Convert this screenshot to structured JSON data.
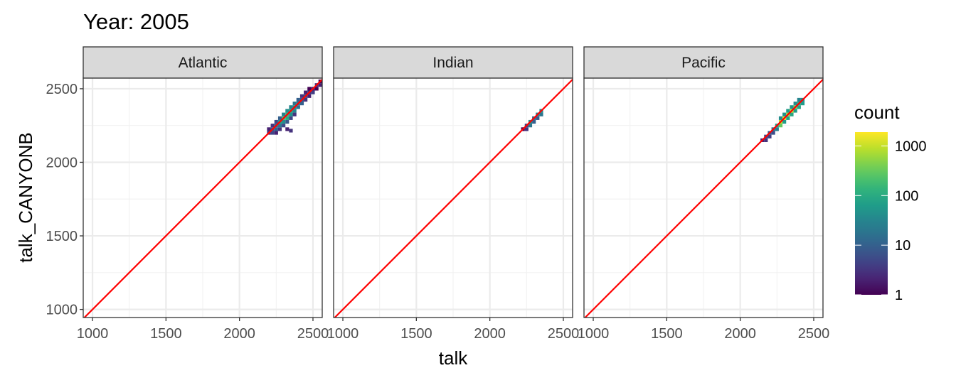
{
  "chart_data": {
    "type": "heatmap",
    "title": "Year: 2005",
    "xlabel": "talk",
    "ylabel": "talk_CANYONB",
    "xlim": [
      937,
      2563
    ],
    "ylim": [
      945,
      2572
    ],
    "x_ticks": [
      1000,
      1500,
      2000,
      2500
    ],
    "y_ticks": [
      1000,
      1500,
      2000,
      2500
    ],
    "grid": true,
    "reference_line": {
      "type": "identity",
      "color": "#FF0000"
    },
    "bin_width": 25,
    "legend": {
      "title": "count",
      "position": "right",
      "scale": "log10",
      "colormap": "viridis",
      "ticks": [
        1,
        10,
        100,
        1000
      ],
      "tick_labels": [
        "1",
        "10",
        "100",
        "1000"
      ],
      "range": [
        1,
        1900
      ]
    },
    "panels": [
      {
        "label": "Atlantic",
        "bins": [
          [
            2200,
            2200,
            3
          ],
          [
            2200,
            2225,
            2
          ],
          [
            2225,
            2200,
            5
          ],
          [
            2225,
            2225,
            8
          ],
          [
            2225,
            2250,
            3
          ],
          [
            2250,
            2200,
            2
          ],
          [
            2250,
            2225,
            10
          ],
          [
            2250,
            2250,
            15
          ],
          [
            2250,
            2275,
            5
          ],
          [
            2275,
            2225,
            3
          ],
          [
            2275,
            2250,
            20
          ],
          [
            2275,
            2275,
            60
          ],
          [
            2275,
            2300,
            10
          ],
          [
            2300,
            2250,
            5
          ],
          [
            2300,
            2275,
            40
          ],
          [
            2300,
            2300,
            200
          ],
          [
            2300,
            2325,
            30
          ],
          [
            2325,
            2225,
            2
          ],
          [
            2325,
            2275,
            8
          ],
          [
            2325,
            2300,
            100
          ],
          [
            2325,
            2325,
            150
          ],
          [
            2325,
            2350,
            40
          ],
          [
            2350,
            2215,
            3
          ],
          [
            2350,
            2300,
            5
          ],
          [
            2350,
            2325,
            50
          ],
          [
            2350,
            2350,
            80
          ],
          [
            2350,
            2375,
            30
          ],
          [
            2375,
            2325,
            3
          ],
          [
            2375,
            2350,
            30
          ],
          [
            2375,
            2375,
            40
          ],
          [
            2375,
            2400,
            20
          ],
          [
            2400,
            2375,
            15
          ],
          [
            2400,
            2400,
            20
          ],
          [
            2400,
            2425,
            10
          ],
          [
            2425,
            2400,
            10
          ],
          [
            2425,
            2425,
            8
          ],
          [
            2425,
            2450,
            3
          ],
          [
            2450,
            2425,
            3
          ],
          [
            2450,
            2450,
            5
          ],
          [
            2450,
            2475,
            2
          ],
          [
            2475,
            2450,
            2
          ],
          [
            2475,
            2475,
            3
          ],
          [
            2475,
            2500,
            1
          ],
          [
            2500,
            2475,
            4
          ],
          [
            2500,
            2500,
            2
          ],
          [
            2525,
            2500,
            1
          ],
          [
            2525,
            2525,
            3
          ],
          [
            2550,
            2525,
            2
          ],
          [
            2550,
            2550,
            1
          ]
        ]
      },
      {
        "label": "Indian",
        "bins": [
          [
            2225,
            2225,
            1
          ],
          [
            2250,
            2225,
            3
          ],
          [
            2250,
            2250,
            5
          ],
          [
            2275,
            2250,
            20
          ],
          [
            2275,
            2275,
            40
          ],
          [
            2300,
            2275,
            10
          ],
          [
            2300,
            2300,
            15
          ],
          [
            2325,
            2300,
            8
          ],
          [
            2325,
            2325,
            30
          ],
          [
            2350,
            2325,
            20
          ],
          [
            2350,
            2350,
            40
          ]
        ]
      },
      {
        "label": "Pacific",
        "bins": [
          [
            2150,
            2150,
            2
          ],
          [
            2175,
            2150,
            3
          ],
          [
            2175,
            2175,
            5
          ],
          [
            2200,
            2175,
            4
          ],
          [
            2200,
            2200,
            8
          ],
          [
            2225,
            2200,
            6
          ],
          [
            2225,
            2225,
            20
          ],
          [
            2250,
            2225,
            25
          ],
          [
            2250,
            2250,
            80
          ],
          [
            2275,
            2250,
            300
          ],
          [
            2275,
            2275,
            900
          ],
          [
            2275,
            2300,
            40
          ],
          [
            2300,
            2275,
            60
          ],
          [
            2300,
            2300,
            1200
          ],
          [
            2300,
            2325,
            50
          ],
          [
            2325,
            2300,
            80
          ],
          [
            2325,
            2325,
            700
          ],
          [
            2325,
            2350,
            60
          ],
          [
            2350,
            2325,
            90
          ],
          [
            2350,
            2350,
            1000
          ],
          [
            2350,
            2375,
            50
          ],
          [
            2375,
            2350,
            60
          ],
          [
            2375,
            2375,
            400
          ],
          [
            2375,
            2400,
            40
          ],
          [
            2400,
            2375,
            80
          ],
          [
            2400,
            2400,
            100
          ],
          [
            2400,
            2425,
            30
          ],
          [
            2425,
            2400,
            60
          ],
          [
            2425,
            2425,
            40
          ]
        ]
      }
    ]
  }
}
